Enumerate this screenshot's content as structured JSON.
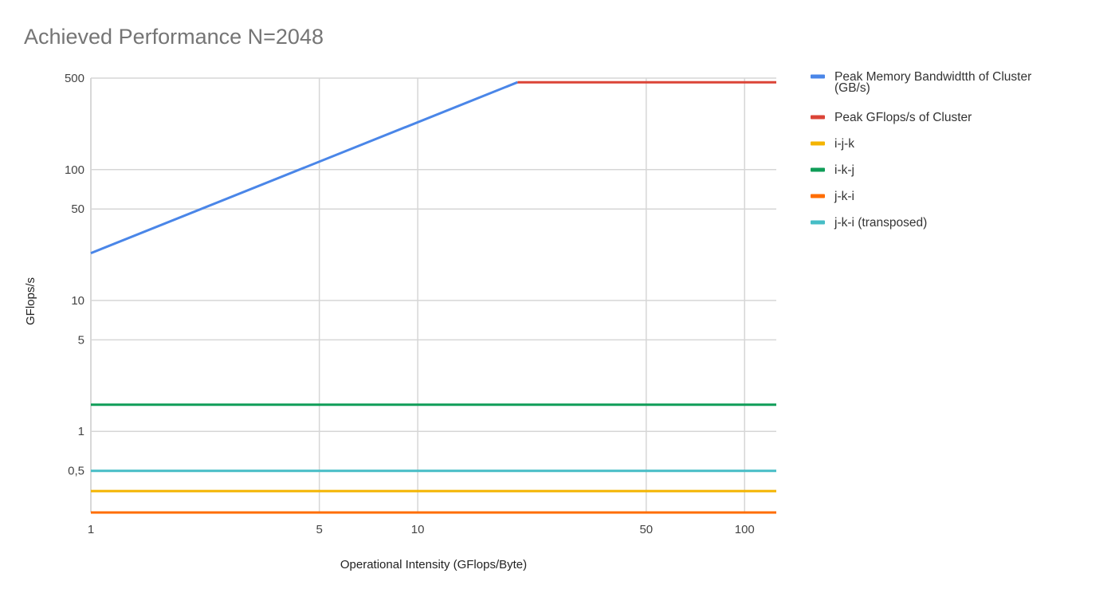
{
  "chart_data": {
    "type": "line",
    "title": "Achieved Performance  N=2048",
    "xlabel": "Operational Intensity (GFlops/Byte)",
    "ylabel": "GFlops/s",
    "x_scale": "log",
    "y_scale": "log",
    "xlim": [
      1,
      125
    ],
    "ylim": [
      0.24,
      500
    ],
    "x_ticks": [
      1,
      5,
      10,
      50,
      100
    ],
    "x_tick_labels": [
      "1",
      "5",
      "10",
      "50",
      "100"
    ],
    "y_ticks": [
      0.5,
      1,
      5,
      10,
      50,
      100,
      500
    ],
    "y_tick_labels": [
      "0,5",
      "1",
      "5",
      "10",
      "50",
      "100",
      "500"
    ],
    "grid": true,
    "legend_position": "right",
    "series": [
      {
        "name": "Peak Memory Bandwidtth of Cluster (GB/s)",
        "color": "#4a86e8",
        "x": [
          1,
          20.2
        ],
        "y": [
          23,
          465
        ]
      },
      {
        "name": "Peak GFlops/s of Cluster",
        "color": "#db4437",
        "x": [
          20.2,
          125
        ],
        "y": [
          465,
          465
        ]
      },
      {
        "name": "i-j-k",
        "color": "#f4b400",
        "x": [
          1,
          125
        ],
        "y": [
          0.35,
          0.35
        ]
      },
      {
        "name": "i-k-j",
        "color": "#0f9d58",
        "x": [
          1,
          125
        ],
        "y": [
          1.6,
          1.6
        ]
      },
      {
        "name": "j-k-i",
        "color": "#ff6d00",
        "x": [
          1,
          125
        ],
        "y": [
          0.24,
          0.24
        ]
      },
      {
        "name": "j-k-i (transposed)",
        "color": "#46bdc6",
        "x": [
          1,
          125
        ],
        "y": [
          0.5,
          0.5
        ]
      }
    ]
  }
}
